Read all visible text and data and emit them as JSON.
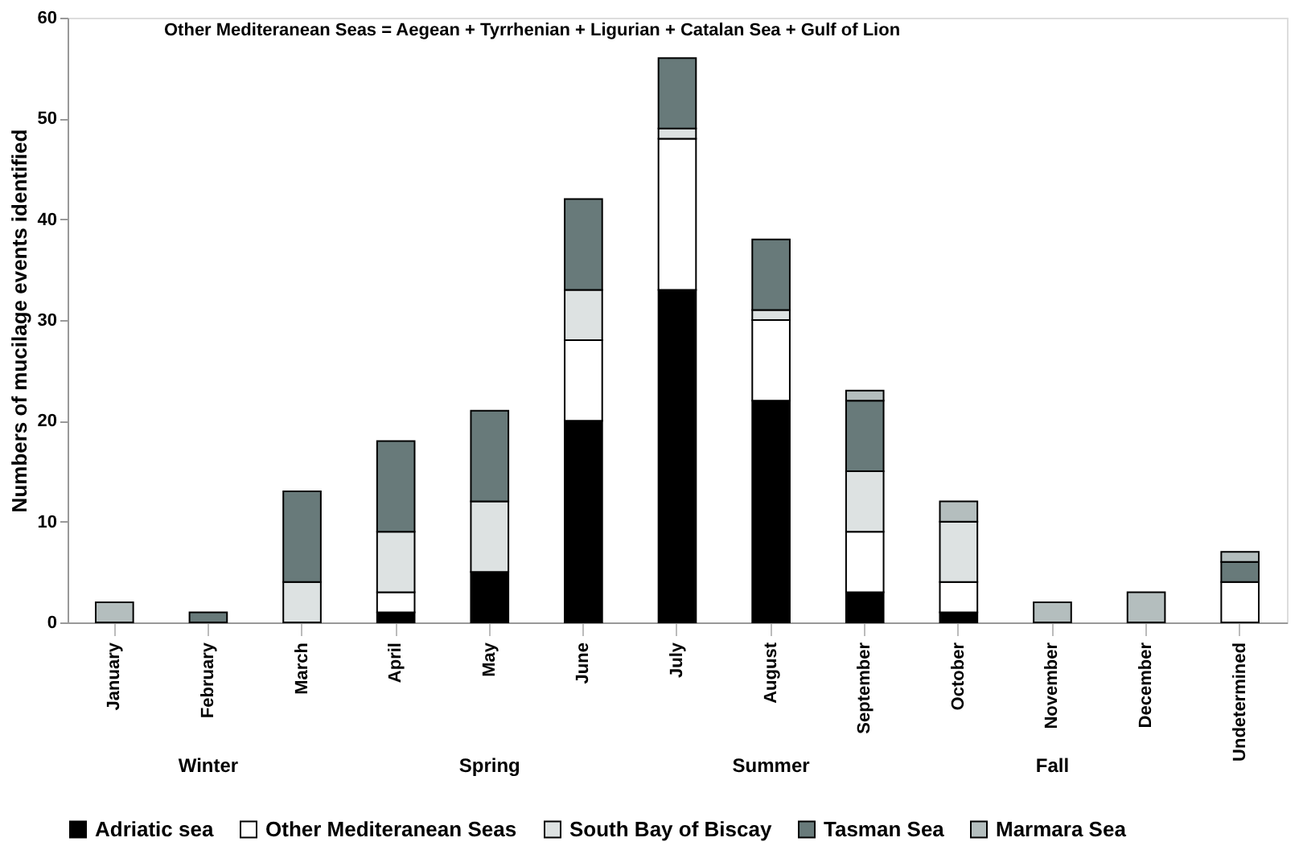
{
  "chart_data": {
    "type": "bar",
    "stacked": true,
    "ylabel": "Numbers of mucilage events identified",
    "categories": [
      "January",
      "February",
      "March",
      "April",
      "May",
      "June",
      "July",
      "August",
      "September",
      "October",
      "November",
      "December",
      "Undetermined"
    ],
    "series": [
      {
        "name": "Adriatic sea",
        "color": "#000000",
        "values": [
          0,
          0,
          0,
          1,
          5,
          20,
          33,
          22,
          3,
          1,
          0,
          0,
          0
        ]
      },
      {
        "name": "Other Mediteranean Seas",
        "color": "#ffffff",
        "values": [
          0,
          0,
          0,
          2,
          0,
          8,
          15,
          8,
          6,
          3,
          0,
          0,
          4
        ]
      },
      {
        "name": "South Bay of Biscay",
        "color": "#dde2e2",
        "values": [
          0,
          0,
          4,
          6,
          7,
          5,
          1,
          1,
          6,
          6,
          0,
          0,
          0
        ]
      },
      {
        "name": "Tasman Sea",
        "color": "#687a7a",
        "values": [
          0,
          1,
          9,
          9,
          9,
          9,
          7,
          7,
          7,
          0,
          0,
          0,
          2
        ]
      },
      {
        "name": "Marmara Sea",
        "color": "#b4bebe",
        "values": [
          2,
          0,
          0,
          0,
          0,
          0,
          0,
          0,
          1,
          2,
          2,
          3,
          1
        ]
      }
    ],
    "ylim": [
      0,
      60
    ],
    "yticks": [
      0,
      10,
      20,
      30,
      40,
      50,
      60
    ],
    "grid": false,
    "legend": "bottom",
    "annotations": [
      "Other Mediteranean Seas = Aegean + Tyrrhenian + Ligurian + Catalan Sea + Gulf of Lion",
      "Winter",
      "Spring",
      "Summer",
      "Fall"
    ]
  }
}
